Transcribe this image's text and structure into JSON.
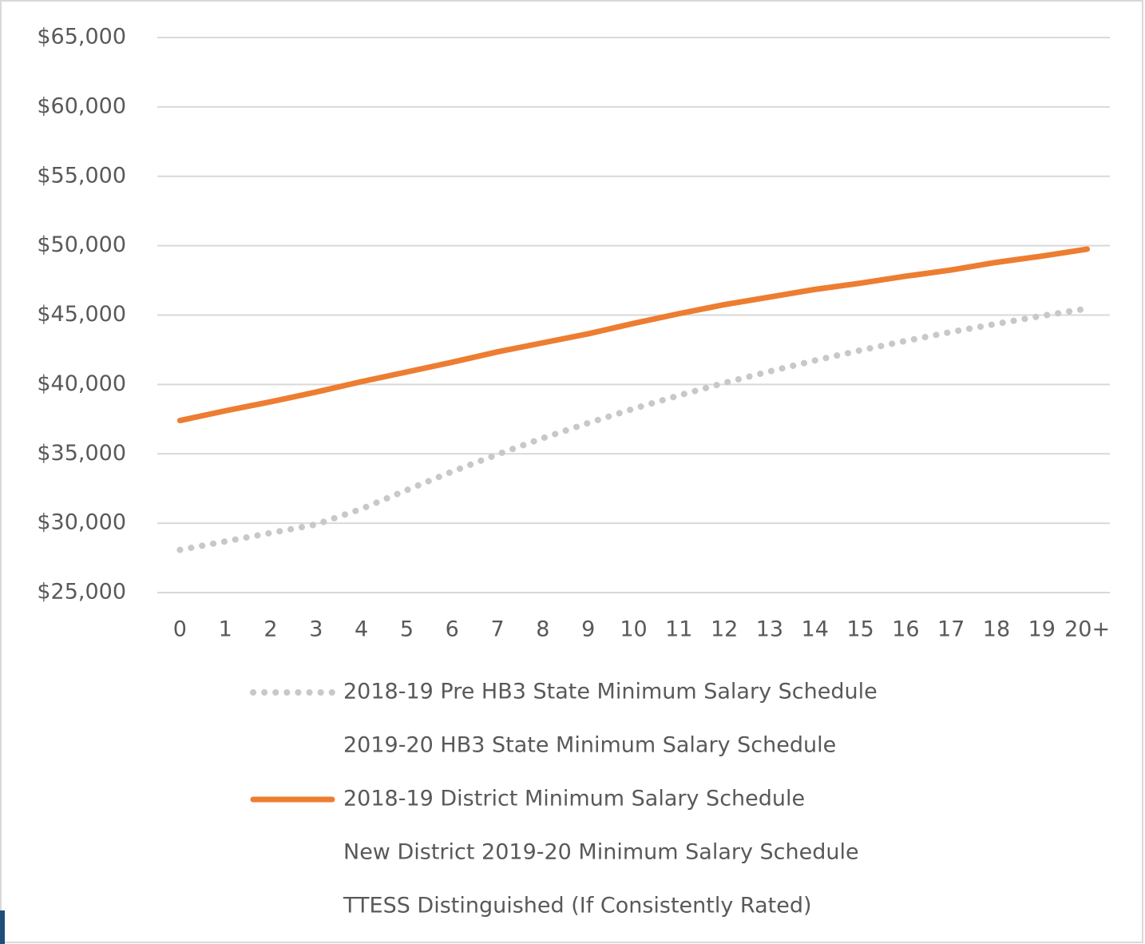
{
  "chart_data": {
    "type": "line",
    "categories": [
      "0",
      "1",
      "2",
      "3",
      "4",
      "5",
      "6",
      "7",
      "8",
      "9",
      "10",
      "11",
      "12",
      "13",
      "14",
      "15",
      "16",
      "17",
      "18",
      "19",
      "20+"
    ],
    "series": [
      {
        "name": "2018-19 Pre HB3 State Minimum Salary Schedule",
        "color": "#c8c8c8",
        "dash": "dotted",
        "values": [
          28080,
          28690,
          29300,
          29910,
          31030,
          32390,
          33720,
          34960,
          36130,
          37220,
          38250,
          39210,
          40110,
          40940,
          41730,
          42460,
          43140,
          43780,
          44370,
          44940,
          45470
        ]
      },
      {
        "name": "2019-20 HB3 State Minimum Salary Schedule",
        "values": [
          null,
          null,
          null,
          null,
          null,
          null,
          null,
          null,
          null,
          null,
          null,
          null,
          null,
          null,
          null,
          null,
          null,
          null,
          null,
          null,
          null
        ]
      },
      {
        "name": "2018-19 District Minimum Salary Schedule",
        "color": "#ed7d31",
        "dash": "solid",
        "values": [
          37400,
          38100,
          38750,
          39450,
          40200,
          40900,
          41600,
          42350,
          43000,
          43650,
          44400,
          45100,
          45750,
          46300,
          46850,
          47300,
          47800,
          48250,
          48800,
          49250,
          49750
        ]
      },
      {
        "name": "New District 2019-20 Minimum Salary Schedule",
        "values": [
          null,
          null,
          null,
          null,
          null,
          null,
          null,
          null,
          null,
          null,
          null,
          null,
          null,
          null,
          null,
          null,
          null,
          null,
          null,
          null,
          null
        ]
      },
      {
        "name": "TTESS Distinguished (If Consistently Rated)",
        "values": [
          null,
          null,
          null,
          null,
          null,
          null,
          null,
          null,
          null,
          null,
          null,
          null,
          null,
          null,
          null,
          null,
          null,
          null,
          null,
          null,
          null
        ]
      }
    ],
    "ylim": [
      25000,
      65000
    ],
    "yticks": [
      {
        "value": 25000,
        "label": "$25,000"
      },
      {
        "value": 30000,
        "label": "$30,000"
      },
      {
        "value": 35000,
        "label": "$35,000"
      },
      {
        "value": 40000,
        "label": "$40,000"
      },
      {
        "value": 45000,
        "label": "$45,000"
      },
      {
        "value": 50000,
        "label": "$50,000"
      },
      {
        "value": 55000,
        "label": "$55,000"
      },
      {
        "value": 60000,
        "label": "$60,000"
      },
      {
        "value": 65000,
        "label": "$65,000"
      }
    ],
    "grid": true,
    "legend": "bottom"
  }
}
